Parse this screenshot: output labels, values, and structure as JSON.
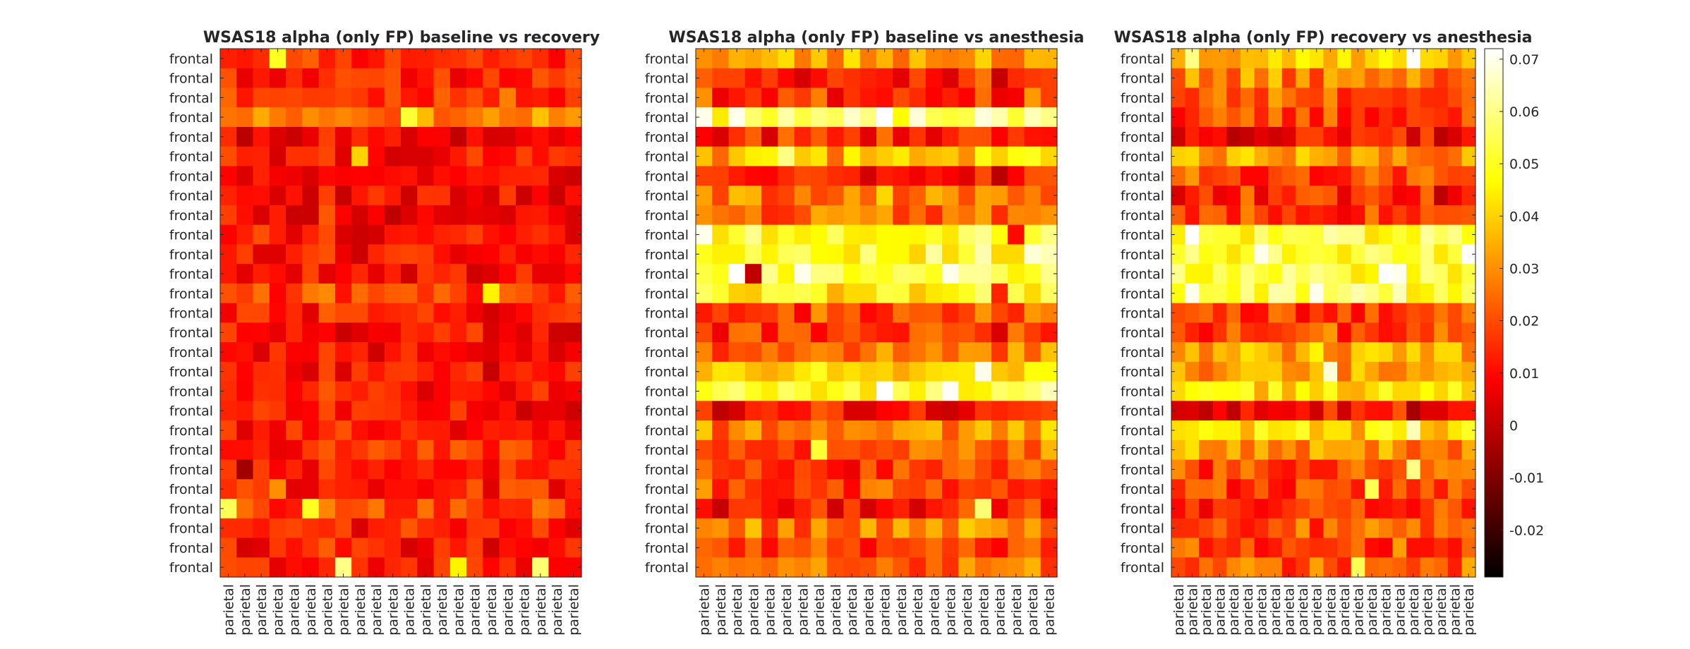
{
  "chart_data": {
    "type": "heatmap",
    "colormap": "hot",
    "colorbar": {
      "ticks": [
        -0.02,
        -0.01,
        0,
        0.01,
        0.02,
        0.03,
        0.04,
        0.05,
        0.06,
        0.07
      ],
      "tick_labels": [
        "-0.02",
        "-0.01",
        "0",
        "0.01",
        "0.02",
        "0.03",
        "0.04",
        "0.05",
        "0.06",
        "0.07"
      ],
      "clim": [
        -0.029,
        0.072
      ]
    },
    "grid": false,
    "panels": [
      {
        "title": "WSAS18 alpha (only FP) baseline vs recovery",
        "rows": 27,
        "cols": 22,
        "row_labels": [
          "frontal",
          "frontal",
          "frontal",
          "frontal",
          "frontal",
          "frontal",
          "frontal",
          "frontal",
          "frontal",
          "frontal",
          "frontal",
          "frontal",
          "frontal",
          "frontal",
          "frontal",
          "frontal",
          "frontal",
          "frontal",
          "frontal",
          "frontal",
          "frontal",
          "frontal",
          "frontal",
          "frontal",
          "frontal",
          "frontal",
          "frontal"
        ],
        "col_labels": [
          "parietal",
          "parietal",
          "parietal",
          "parietal",
          "parietal",
          "parietal",
          "parietal",
          "parietal",
          "parietal",
          "parietal",
          "parietal",
          "parietal",
          "parietal",
          "parietal",
          "parietal",
          "parietal",
          "parietal",
          "parietal",
          "parietal",
          "parietal",
          "parietal",
          "parietal"
        ],
        "row_profile": [
          0.016,
          0.014,
          0.018,
          0.028,
          0.007,
          0.011,
          0.009,
          0.008,
          0.009,
          0.01,
          0.01,
          0.009,
          0.017,
          0.012,
          0.01,
          0.009,
          0.01,
          0.012,
          0.01,
          0.013,
          0.015,
          0.011,
          0.013,
          0.018,
          0.012,
          0.01,
          0.01
        ],
        "col_offset": [
          0.002,
          0.0,
          0.002,
          -0.001,
          0.0,
          0.001,
          0.004,
          -0.001,
          0.0,
          0.001,
          -0.001,
          0.001,
          0.0,
          0.002,
          0.0,
          0.001,
          -0.001,
          0.001,
          0.0,
          0.001,
          -0.001,
          0.0
        ],
        "noise": 0.009,
        "seed": 11,
        "hot_cells": [
          [
            0,
            3,
            0.05
          ],
          [
            3,
            11,
            0.052
          ],
          [
            23,
            0,
            0.055
          ],
          [
            26,
            7,
            0.06
          ],
          [
            26,
            14,
            0.045
          ],
          [
            26,
            19,
            0.058
          ],
          [
            12,
            16,
            0.045
          ],
          [
            23,
            5,
            0.05
          ],
          [
            6,
            1,
            0.004
          ],
          [
            21,
            1,
            -0.005
          ],
          [
            5,
            8,
            0.04
          ],
          [
            22,
            3,
            0.03
          ]
        ]
      },
      {
        "title": "WSAS18 alpha (only FP) baseline vs anesthesia",
        "rows": 27,
        "cols": 22,
        "row_labels": [
          "frontal",
          "frontal",
          "frontal",
          "frontal",
          "frontal",
          "frontal",
          "frontal",
          "frontal",
          "frontal",
          "frontal",
          "frontal",
          "frontal",
          "frontal",
          "frontal",
          "frontal",
          "frontal",
          "frontal",
          "frontal",
          "frontal",
          "frontal",
          "frontal",
          "frontal",
          "frontal",
          "frontal",
          "frontal",
          "frontal",
          "frontal"
        ],
        "col_labels": [
          "parietal",
          "parietal",
          "parietal",
          "parietal",
          "parietal",
          "parietal",
          "parietal",
          "parietal",
          "parietal",
          "parietal",
          "parietal",
          "parietal",
          "parietal",
          "parietal",
          "parietal",
          "parietal",
          "parietal",
          "parietal",
          "parietal",
          "parietal",
          "parietal",
          "parietal"
        ],
        "row_profile": [
          0.032,
          0.012,
          0.016,
          0.055,
          0.013,
          0.036,
          0.011,
          0.026,
          0.022,
          0.052,
          0.05,
          0.053,
          0.046,
          0.018,
          0.016,
          0.026,
          0.038,
          0.05,
          0.011,
          0.028,
          0.022,
          0.014,
          0.018,
          0.012,
          0.026,
          0.016,
          0.022
        ],
        "col_offset": [
          0.004,
          -0.002,
          0.002,
          0.001,
          0.0,
          0.003,
          0.0,
          0.002,
          -0.001,
          0.002,
          0.001,
          0.004,
          0.001,
          0.0,
          0.002,
          0.001,
          0.003,
          0.005,
          -0.002,
          0.002,
          0.006,
          0.004
        ],
        "noise": 0.011,
        "seed": 23,
        "hot_cells": [
          [
            3,
            2,
            0.07
          ],
          [
            3,
            11,
            0.072
          ],
          [
            3,
            13,
            0.068
          ],
          [
            11,
            2,
            0.072
          ],
          [
            11,
            6,
            0.07
          ],
          [
            11,
            15,
            0.07
          ],
          [
            17,
            11,
            0.072
          ],
          [
            17,
            15,
            0.071
          ],
          [
            9,
            0,
            0.07
          ],
          [
            10,
            20,
            0.068
          ],
          [
            11,
            3,
            0.0
          ],
          [
            9,
            19,
            0.01
          ],
          [
            16,
            17,
            0.07
          ],
          [
            17,
            21,
            0.065
          ],
          [
            12,
            18,
            0.014
          ],
          [
            20,
            7,
            0.052
          ],
          [
            23,
            17,
            0.058
          ],
          [
            5,
            5,
            0.06
          ]
        ]
      },
      {
        "title": "WSAS18 alpha (only FP) recovery vs anesthesia",
        "rows": 27,
        "cols": 22,
        "row_labels": [
          "frontal",
          "frontal",
          "frontal",
          "frontal",
          "frontal",
          "frontal",
          "frontal",
          "frontal",
          "frontal",
          "frontal",
          "frontal",
          "frontal",
          "frontal",
          "frontal",
          "frontal",
          "frontal",
          "frontal",
          "frontal",
          "frontal",
          "frontal",
          "frontal",
          "frontal",
          "frontal",
          "frontal",
          "frontal",
          "frontal",
          "frontal"
        ],
        "col_labels": [
          "parietal",
          "parietal",
          "parietal",
          "parietal",
          "parietal",
          "parietal",
          "parietal",
          "parietal",
          "parietal",
          "parietal",
          "parietal",
          "parietal",
          "parietal",
          "parietal",
          "parietal",
          "parietal",
          "parietal",
          "parietal",
          "parietal",
          "parietal",
          "parietal",
          "parietal"
        ],
        "row_profile": [
          0.04,
          0.026,
          0.02,
          0.016,
          0.008,
          0.03,
          0.018,
          0.014,
          0.016,
          0.05,
          0.05,
          0.052,
          0.052,
          0.016,
          0.018,
          0.034,
          0.03,
          0.04,
          0.007,
          0.04,
          0.03,
          0.02,
          0.018,
          0.018,
          0.02,
          0.018,
          0.022
        ],
        "col_offset": [
          0.0,
          0.003,
          -0.001,
          0.002,
          0.0,
          0.002,
          0.001,
          0.003,
          0.0,
          0.002,
          0.001,
          0.003,
          0.0,
          0.001,
          0.002,
          0.001,
          0.004,
          -0.001,
          0.003,
          0.001,
          0.0,
          0.002
        ],
        "noise": 0.011,
        "seed": 37,
        "hot_cells": [
          [
            9,
            1,
            0.072
          ],
          [
            10,
            6,
            0.07
          ],
          [
            11,
            15,
            0.072
          ],
          [
            11,
            16,
            0.07
          ],
          [
            12,
            1,
            0.07
          ],
          [
            12,
            10,
            0.07
          ],
          [
            16,
            11,
            0.068
          ],
          [
            10,
            21,
            0.072
          ],
          [
            0,
            17,
            0.072
          ],
          [
            0,
            1,
            0.06
          ],
          [
            18,
            0,
            0.003
          ],
          [
            18,
            10,
            0.002
          ],
          [
            22,
            14,
            0.055
          ],
          [
            26,
            13,
            0.055
          ],
          [
            21,
            17,
            0.06
          ],
          [
            19,
            17,
            0.065
          ],
          [
            4,
            0,
            0.002
          ],
          [
            7,
            19,
            -0.001
          ]
        ]
      }
    ]
  }
}
